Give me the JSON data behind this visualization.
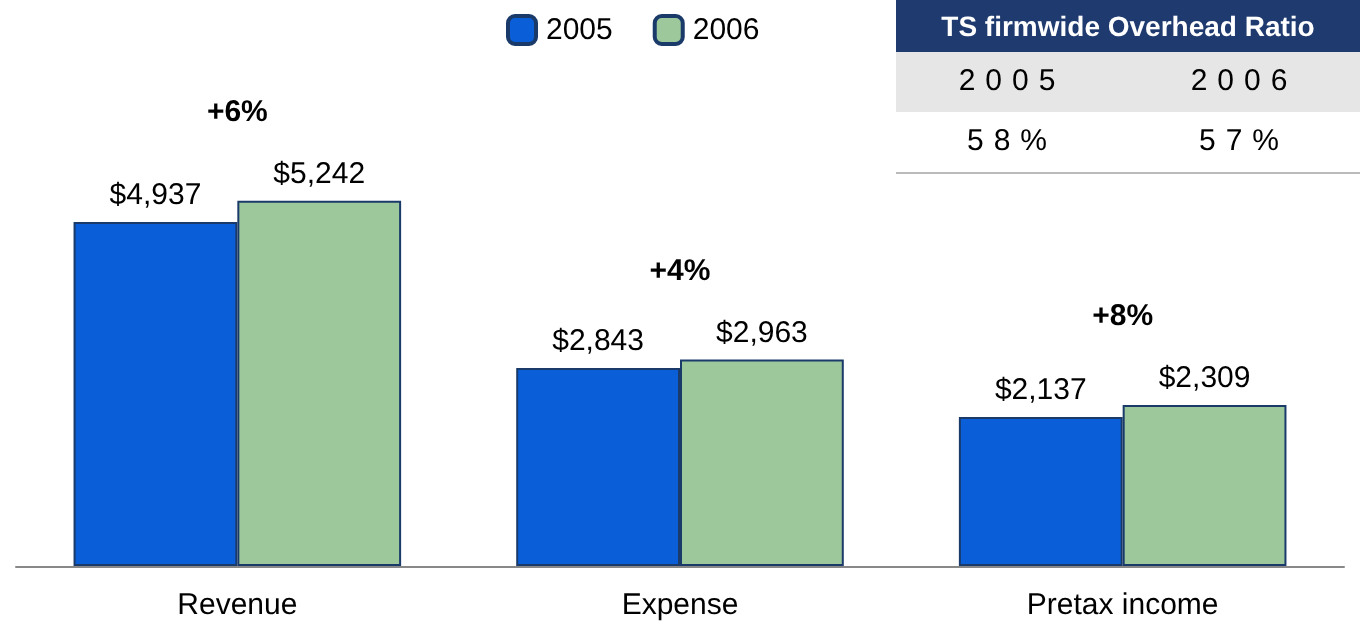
{
  "chart_data": {
    "type": "bar",
    "categories": [
      "Revenue",
      "Expense",
      "Pretax income"
    ],
    "series": [
      {
        "name": "2005",
        "color": "#0a5fd8",
        "values": [
          4937,
          2843,
          2137
        ],
        "value_labels": [
          "$4,937",
          "$2,843",
          "$2,137"
        ]
      },
      {
        "name": "2006",
        "color": "#9dc89b",
        "values": [
          5242,
          2963,
          2309
        ],
        "value_labels": [
          "$5,242",
          "$2,963",
          "$2,309"
        ]
      }
    ],
    "annotations": [
      "+6%",
      "+4%",
      "+8%",
      "TS firmwide Overhead Ratio",
      "2005",
      "2006",
      "58%",
      "57%"
    ],
    "legend": "top"
  }
}
